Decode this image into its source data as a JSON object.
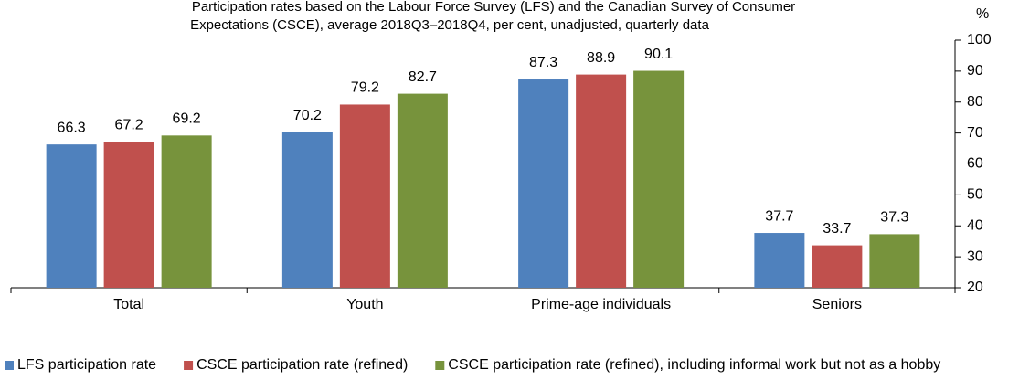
{
  "chart_data": {
    "type": "bar",
    "subtitle": [
      "Participation rates based on the Labour Force Survey (LFS) and the Canadian Survey of Consumer",
      "Expectations (CSCE), average 2018Q3–2018Q4, per cent, unadjusted, quarterly data"
    ],
    "y_axis_label": "%",
    "categories": [
      "Total",
      "Youth",
      "Prime-age individuals",
      "Seniors"
    ],
    "series": [
      {
        "name": "LFS participation rate",
        "color": "#4f81bd",
        "values": [
          66.3,
          70.2,
          87.3,
          37.7
        ]
      },
      {
        "name": "CSCE participation rate (refined)",
        "color": "#c0504d",
        "values": [
          67.2,
          79.2,
          88.9,
          33.7
        ]
      },
      {
        "name": "CSCE participation rate (refined), including informal work but not as a hobby",
        "color": "#77933c",
        "values": [
          69.2,
          82.7,
          90.1,
          37.3
        ]
      }
    ],
    "ylim": [
      20,
      100
    ],
    "yticks": [
      20,
      30,
      40,
      50,
      60,
      70,
      80,
      90,
      100
    ],
    "grid": false,
    "y_axis_side": "right",
    "legend": "bottom"
  }
}
